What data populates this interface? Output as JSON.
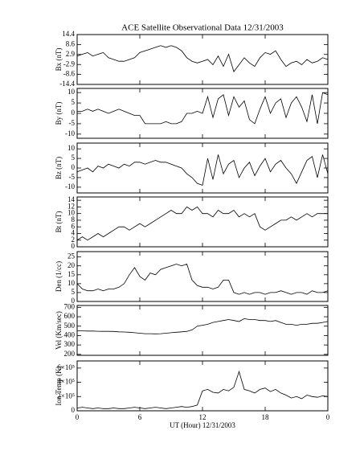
{
  "chart_data": [
    {
      "type": "line",
      "title": "ACE Satellite Observational Data   12/31/2003",
      "ylabel": "Bx (nT)",
      "ylim": [
        -14.4,
        14.4
      ],
      "yticks": [
        14.4,
        8.6,
        2.9,
        -2.9,
        -8.6,
        -14.4
      ],
      "color": "#000000",
      "x": [
        0,
        0.5,
        1,
        1.5,
        2,
        2.5,
        3,
        3.5,
        4,
        4.5,
        5,
        5.5,
        6,
        6.5,
        7,
        7.5,
        8,
        8.5,
        9,
        9.5,
        10,
        10.5,
        11,
        11.5,
        12,
        12.5,
        13,
        13.5,
        14,
        14.5,
        15,
        15.5,
        16,
        16.5,
        17,
        17.5,
        18,
        18.5,
        19,
        19.5,
        20,
        20.5,
        21,
        21.5,
        22,
        22.5,
        23,
        23.5,
        24
      ],
      "values": [
        2,
        3,
        4,
        2,
        3,
        4,
        1,
        0,
        -1,
        -1,
        0,
        1,
        4,
        5,
        6,
        7,
        8,
        7,
        8,
        7,
        5,
        1,
        -1,
        -2,
        -1,
        0,
        -3,
        2,
        -4,
        3,
        -7,
        -3,
        1,
        -2,
        -4,
        1,
        4,
        3,
        5,
        0,
        -4,
        -2,
        -1,
        -3,
        0,
        -2,
        -1,
        1,
        0
      ]
    },
    {
      "type": "line",
      "ylabel": "By (nT)",
      "ylim": [
        -12,
        12
      ],
      "yticks": [
        10,
        5,
        0,
        -5,
        -10
      ],
      "color": "#000000",
      "x": [
        0,
        0.5,
        1,
        1.5,
        2,
        2.5,
        3,
        3.5,
        4,
        4.5,
        5,
        5.5,
        6,
        6.5,
        7,
        7.5,
        8,
        8.5,
        9,
        9.5,
        10,
        10.5,
        11,
        11.5,
        12,
        12.5,
        13,
        13.5,
        14,
        14.5,
        15,
        15.5,
        16,
        16.5,
        17,
        17.5,
        18,
        18.5,
        19,
        19.5,
        20,
        20.5,
        21,
        21.5,
        22,
        22.5,
        23,
        23.5,
        24
      ],
      "values": [
        1,
        1,
        2,
        1,
        2,
        1,
        0,
        1,
        2,
        1,
        0,
        -1,
        -1,
        -5,
        -5,
        -5,
        -5,
        -4,
        -5,
        -5,
        -4,
        0,
        0,
        1,
        0,
        8,
        -2,
        7,
        9,
        -1,
        8,
        3,
        6,
        -3,
        -5,
        2,
        8,
        0,
        5,
        7,
        -2,
        5,
        8,
        3,
        -4,
        9,
        -5,
        10,
        9
      ]
    },
    {
      "type": "line",
      "ylabel": "Bz (nT)",
      "ylim": [
        -13,
        13
      ],
      "yticks": [
        10,
        5,
        0,
        -5,
        -10
      ],
      "color": "#000000",
      "x": [
        0,
        0.5,
        1,
        1.5,
        2,
        2.5,
        3,
        3.5,
        4,
        4.5,
        5,
        5.5,
        6,
        6.5,
        7,
        7.5,
        8,
        8.5,
        9,
        9.5,
        10,
        10.5,
        11,
        11.5,
        12,
        12.5,
        13,
        13.5,
        14,
        14.5,
        15,
        15.5,
        16,
        16.5,
        17,
        17.5,
        18,
        18.5,
        19,
        19.5,
        20,
        20.5,
        21,
        21.5,
        22,
        22.5,
        23,
        23.5,
        24
      ],
      "values": [
        -2,
        -1,
        0,
        -2,
        1,
        0,
        2,
        1,
        0,
        2,
        1,
        3,
        3,
        2,
        3,
        4,
        3,
        3,
        2,
        1,
        0,
        -3,
        -5,
        -8,
        -9,
        5,
        -6,
        7,
        -3,
        2,
        4,
        -5,
        0,
        3,
        -4,
        1,
        5,
        -2,
        2,
        4,
        0,
        -3,
        -8,
        -2,
        4,
        6,
        -5,
        7,
        -3
      ]
    },
    {
      "type": "line",
      "ylabel": "Bt (nT)",
      "ylim": [
        0,
        15
      ],
      "yticks": [
        0,
        2,
        4,
        6,
        8,
        10,
        12,
        14
      ],
      "color": "#000000",
      "x": [
        0,
        0.5,
        1,
        1.5,
        2,
        2.5,
        3,
        3.5,
        4,
        4.5,
        5,
        5.5,
        6,
        6.5,
        7,
        7.5,
        8,
        8.5,
        9,
        9.5,
        10,
        10.5,
        11,
        11.5,
        12,
        12.5,
        13,
        13.5,
        14,
        14.5,
        15,
        15.5,
        16,
        16.5,
        17,
        17.5,
        18,
        18.5,
        19,
        19.5,
        20,
        20.5,
        21,
        21.5,
        22,
        22.5,
        23,
        23.5,
        24
      ],
      "values": [
        2,
        3,
        2,
        3,
        4,
        3,
        4,
        5,
        6,
        6,
        5,
        6,
        7,
        6,
        7,
        8,
        9,
        10,
        11,
        10,
        10,
        12,
        11,
        12,
        10,
        10,
        9,
        11,
        10,
        10,
        11,
        9,
        10,
        9,
        10,
        6,
        5,
        6,
        7,
        8,
        8,
        9,
        8,
        9,
        10,
        9,
        10,
        10,
        10
      ]
    },
    {
      "type": "line",
      "ylabel": "Den (1/cc)",
      "ylim": [
        0,
        28
      ],
      "yticks": [
        0,
        5,
        10,
        15,
        20,
        25
      ],
      "color": "#000000",
      "x": [
        0,
        0.5,
        1,
        1.5,
        2,
        2.5,
        3,
        3.5,
        4,
        4.5,
        5,
        5.5,
        6,
        6.5,
        7,
        7.5,
        8,
        8.5,
        9,
        9.5,
        10,
        10.5,
        11,
        11.5,
        12,
        12.5,
        13,
        13.5,
        14,
        14.5,
        15,
        15.5,
        16,
        16.5,
        17,
        17.5,
        18,
        18.5,
        19,
        19.5,
        20,
        20.5,
        21,
        21.5,
        22,
        22.5,
        23,
        23.5,
        24
      ],
      "values": [
        10,
        7,
        6,
        6,
        7,
        6,
        7,
        7,
        8,
        10,
        15,
        19,
        14,
        12,
        16,
        15,
        18,
        19,
        20,
        21,
        20,
        21,
        12,
        9,
        8,
        8,
        7,
        8,
        12,
        12,
        5,
        4,
        5,
        4,
        5,
        5,
        4,
        5,
        5,
        6,
        5,
        4,
        5,
        5,
        4,
        6,
        5,
        5,
        6
      ]
    },
    {
      "type": "line",
      "ylabel": "Vel (Km/sec)",
      "ylim": [
        190,
        720
      ],
      "yticks": [
        200,
        300,
        400,
        500,
        600,
        700
      ],
      "color": "#000000",
      "x": [
        0,
        0.5,
        1,
        1.5,
        2,
        2.5,
        3,
        3.5,
        4,
        4.5,
        5,
        5.5,
        6,
        6.5,
        7,
        7.5,
        8,
        8.5,
        9,
        9.5,
        10,
        10.5,
        11,
        11.5,
        12,
        12.5,
        13,
        13.5,
        14,
        14.5,
        15,
        15.5,
        16,
        16.5,
        17,
        17.5,
        18,
        18.5,
        19,
        19.5,
        20,
        20.5,
        21,
        21.5,
        22,
        22.5,
        23,
        23.5,
        24
      ],
      "values": [
        450,
        450,
        448,
        448,
        446,
        445,
        445,
        444,
        440,
        438,
        435,
        430,
        425,
        420,
        420,
        418,
        420,
        425,
        430,
        435,
        440,
        445,
        460,
        500,
        510,
        520,
        540,
        550,
        560,
        570,
        560,
        550,
        580,
        570,
        570,
        560,
        560,
        550,
        560,
        540,
        520,
        520,
        510,
        520,
        520,
        530,
        530,
        540,
        550
      ]
    },
    {
      "type": "line",
      "ylabel": "Ion Temp (K)",
      "ylim": [
        0,
        700000
      ],
      "yticks": [
        0,
        {
          "value": 200000,
          "label": "2×10⁵"
        },
        {
          "value": 400000,
          "label": "4×10⁵"
        },
        {
          "value": 600000,
          "label": "6×10⁵"
        }
      ],
      "color": "#000000",
      "xlabel": "UT (Hour)  12/31/2003",
      "xlim": [
        0,
        24
      ],
      "xticks": [
        0,
        6,
        12,
        18,
        {
          "value": 24,
          "label": "0"
        }
      ],
      "x": [
        0,
        0.5,
        1,
        1.5,
        2,
        2.5,
        3,
        3.5,
        4,
        4.5,
        5,
        5.5,
        6,
        6.5,
        7,
        7.5,
        8,
        8.5,
        9,
        9.5,
        10,
        10.5,
        11,
        11.5,
        12,
        12.5,
        13,
        13.5,
        14,
        14.5,
        15,
        15.5,
        16,
        16.5,
        17,
        17.5,
        18,
        18.5,
        19,
        19.5,
        20,
        20.5,
        21,
        21.5,
        22,
        22.5,
        23,
        23.5,
        24
      ],
      "values": [
        40000,
        50000,
        40000,
        30000,
        40000,
        30000,
        30000,
        40000,
        30000,
        30000,
        40000,
        50000,
        40000,
        30000,
        40000,
        50000,
        40000,
        30000,
        40000,
        50000,
        60000,
        50000,
        60000,
        80000,
        280000,
        300000,
        260000,
        250000,
        300000,
        280000,
        330000,
        550000,
        300000,
        280000,
        250000,
        300000,
        320000,
        270000,
        300000,
        250000,
        220000,
        180000,
        200000,
        170000,
        220000,
        200000,
        190000,
        210000,
        200000
      ]
    }
  ]
}
